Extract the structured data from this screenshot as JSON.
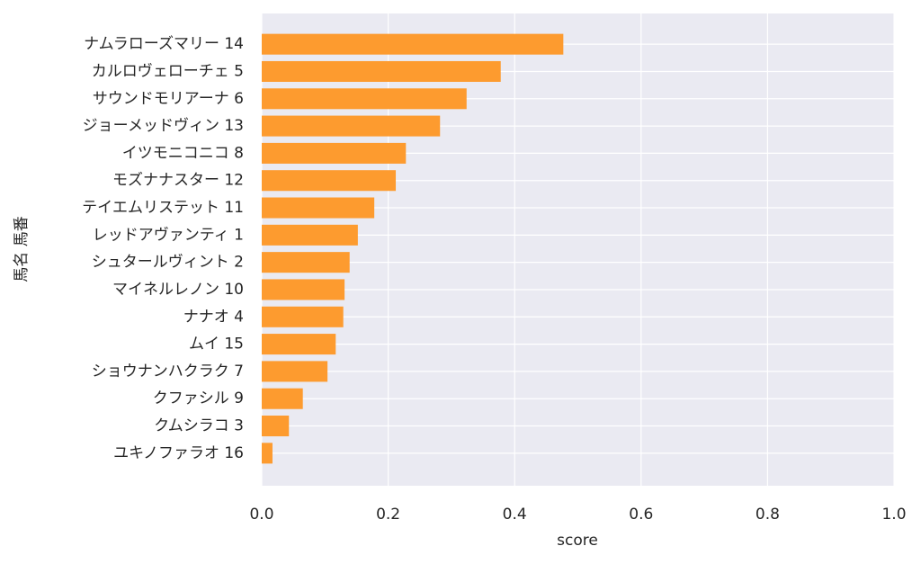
{
  "chart_data": {
    "type": "barh",
    "x_label": "score",
    "y_label": "馬名 馬番",
    "categories": [
      "ナムラローズマリー 14",
      "カルロヴェローチェ 5",
      "サウンドモリアーナ 6",
      "ジョーメッドヴィン 13",
      "イツモニコニコ 8",
      "モズナナスター 12",
      "テイエムリステット 11",
      "レッドアヴァンティ 1",
      "シュタールヴィント 2",
      "マイネルレノン 10",
      "ナナオ 4",
      "ムイ 15",
      "ショウナンハクラク 7",
      "クファシル 9",
      "クムシラコ 3",
      "ユキノファラオ 16"
    ],
    "values": [
      0.477,
      0.378,
      0.324,
      0.282,
      0.228,
      0.212,
      0.178,
      0.152,
      0.139,
      0.131,
      0.129,
      0.117,
      0.104,
      0.065,
      0.043,
      0.017
    ],
    "color": "#fd9b2f",
    "xlim": [
      0,
      1
    ],
    "xticks": [
      {
        "value": 0,
        "label": "0.0"
      },
      0.2,
      0.4,
      0.6,
      0.8,
      {
        "value": 1,
        "label": "1.0"
      }
    ],
    "grid": true
  }
}
